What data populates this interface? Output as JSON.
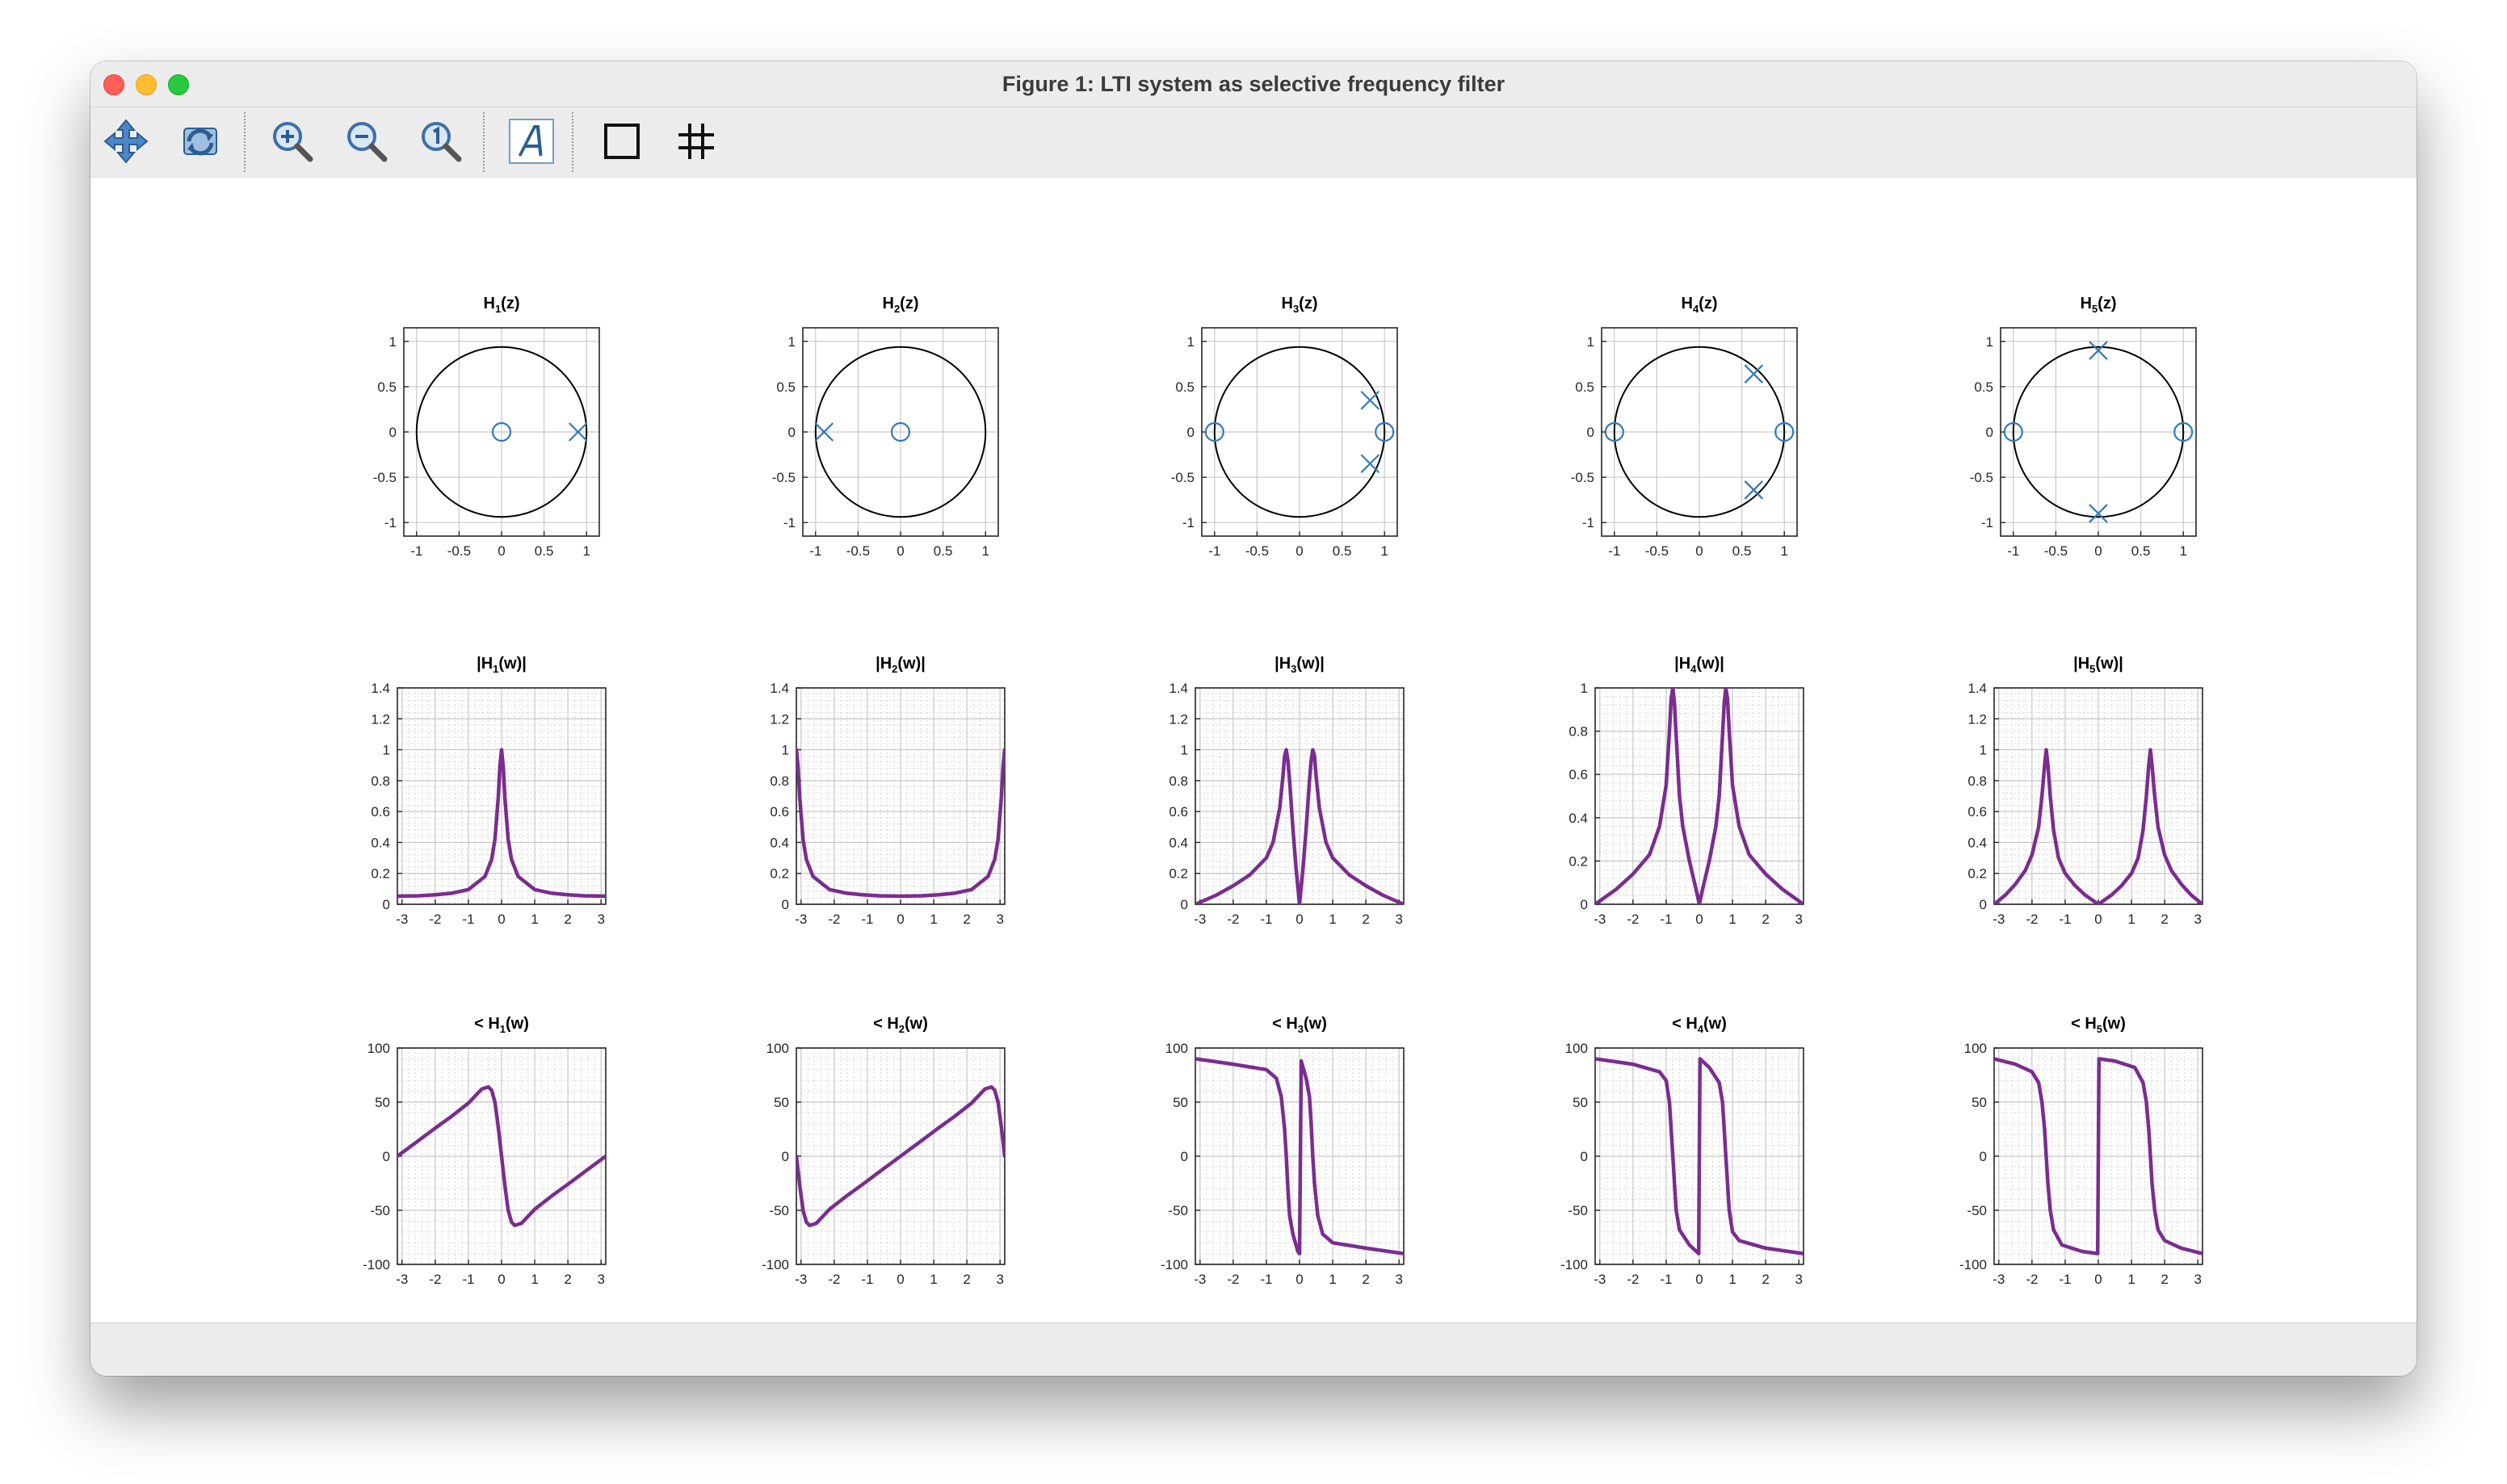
{
  "window": {
    "title": "Figure 1: LTI system as selective frequency filter"
  },
  "colors": {
    "marker": "#2f7ab8",
    "curve": "#7a2d8f",
    "circle": "#000000"
  },
  "toolbar": {
    "buttons": [
      {
        "name": "pan-button",
        "icon": "pan-icon"
      },
      {
        "name": "rotate-button",
        "icon": "rotate-icon"
      },
      {
        "name": "zoom-in-button",
        "icon": "zoom-in-icon"
      },
      {
        "name": "zoom-out-button",
        "icon": "zoom-out-icon"
      },
      {
        "name": "zoom-reset-button",
        "icon": "zoom-reset-icon"
      },
      {
        "name": "insert-text-button",
        "icon": "text-icon"
      },
      {
        "name": "axes-box-button",
        "icon": "box-icon"
      },
      {
        "name": "grid-button",
        "icon": "grid-icon"
      }
    ]
  },
  "chart_data": [
    {
      "id": "pz1",
      "type": "scatter",
      "title": "H1(z)",
      "xlim": [
        -1.15,
        1.15
      ],
      "ylim": [
        -1.15,
        1.15
      ],
      "xticks": [
        -1,
        -0.5,
        0,
        0.5,
        1
      ],
      "yticks": [
        -1,
        -0.5,
        0,
        0.5,
        1
      ],
      "grid": true,
      "unit_circle": true,
      "zeros": [
        [
          0,
          0
        ]
      ],
      "poles": [
        [
          0.9,
          0
        ]
      ]
    },
    {
      "id": "pz2",
      "type": "scatter",
      "title": "H2(z)",
      "xlim": [
        -1.15,
        1.15
      ],
      "ylim": [
        -1.15,
        1.15
      ],
      "xticks": [
        -1,
        -0.5,
        0,
        0.5,
        1
      ],
      "yticks": [
        -1,
        -0.5,
        0,
        0.5,
        1
      ],
      "grid": true,
      "unit_circle": true,
      "zeros": [
        [
          0,
          0
        ]
      ],
      "poles": [
        [
          -0.9,
          0
        ]
      ]
    },
    {
      "id": "pz3",
      "type": "scatter",
      "title": "H3(z)",
      "xlim": [
        -1.15,
        1.15
      ],
      "ylim": [
        -1.15,
        1.15
      ],
      "xticks": [
        -1,
        -0.5,
        0,
        0.5,
        1
      ],
      "yticks": [
        -1,
        -0.5,
        0,
        0.5,
        1
      ],
      "grid": true,
      "unit_circle": true,
      "zeros": [
        [
          -1,
          0
        ],
        [
          1,
          0
        ]
      ],
      "poles": [
        [
          0.83,
          0.35
        ],
        [
          0.83,
          -0.35
        ]
      ]
    },
    {
      "id": "pz4",
      "type": "scatter",
      "title": "H4(z)",
      "xlim": [
        -1.15,
        1.15
      ],
      "ylim": [
        -1.15,
        1.15
      ],
      "xticks": [
        -1,
        -0.5,
        0,
        0.5,
        1
      ],
      "yticks": [
        -1,
        -0.5,
        0,
        0.5,
        1
      ],
      "grid": true,
      "unit_circle": true,
      "zeros": [
        [
          -1,
          0
        ],
        [
          1,
          0
        ]
      ],
      "poles": [
        [
          0.64,
          0.64
        ],
        [
          0.64,
          -0.64
        ]
      ]
    },
    {
      "id": "pz5",
      "type": "scatter",
      "title": "H5(z)",
      "xlim": [
        -1.15,
        1.15
      ],
      "ylim": [
        -1.15,
        1.15
      ],
      "xticks": [
        -1,
        -0.5,
        0,
        0.5,
        1
      ],
      "yticks": [
        -1,
        -0.5,
        0,
        0.5,
        1
      ],
      "grid": true,
      "unit_circle": true,
      "zeros": [
        [
          -1,
          0
        ],
        [
          1,
          0
        ]
      ],
      "poles": [
        [
          0,
          0.9
        ],
        [
          0,
          -0.9
        ]
      ]
    },
    {
      "id": "mag1",
      "type": "line",
      "title": "|H1(w)|",
      "xlim": [
        -3.14159,
        3.14159
      ],
      "ylim": [
        0,
        1.4
      ],
      "xticks": [
        -3,
        -2,
        -1,
        0,
        1,
        2,
        3
      ],
      "yticks": [
        0,
        0.2,
        0.4,
        0.6,
        0.8,
        1,
        1.2,
        1.4
      ],
      "grid": "minor",
      "x": [
        -3.14,
        -2.5,
        -2,
        -1.5,
        -1,
        -0.5,
        -0.3,
        -0.2,
        -0.1,
        -0.05,
        0,
        0.05,
        0.1,
        0.2,
        0.3,
        0.5,
        1,
        1.5,
        2,
        2.5,
        3.14
      ],
      "y": [
        0.053,
        0.055,
        0.061,
        0.072,
        0.095,
        0.18,
        0.29,
        0.42,
        0.69,
        0.89,
        1,
        0.89,
        0.69,
        0.42,
        0.29,
        0.18,
        0.095,
        0.072,
        0.061,
        0.055,
        0.053
      ]
    },
    {
      "id": "mag2",
      "type": "line",
      "title": "|H2(w)|",
      "xlim": [
        -3.14159,
        3.14159
      ],
      "ylim": [
        0,
        1.4
      ],
      "xticks": [
        -3,
        -2,
        -1,
        0,
        1,
        2,
        3
      ],
      "yticks": [
        0,
        0.2,
        0.4,
        0.6,
        0.8,
        1,
        1.2,
        1.4
      ],
      "grid": "minor",
      "x": [
        -3.14,
        -3.09,
        -3.04,
        -2.94,
        -2.84,
        -2.64,
        -2.14,
        -1.64,
        -1.14,
        -0.64,
        0,
        0.64,
        1.14,
        1.64,
        2.14,
        2.64,
        2.84,
        2.94,
        3.04,
        3.09,
        3.14
      ],
      "y": [
        1,
        0.89,
        0.69,
        0.42,
        0.29,
        0.18,
        0.095,
        0.072,
        0.061,
        0.055,
        0.053,
        0.055,
        0.061,
        0.072,
        0.095,
        0.18,
        0.29,
        0.42,
        0.69,
        0.89,
        1
      ]
    },
    {
      "id": "mag3",
      "type": "line",
      "title": "|H3(w)|",
      "xlim": [
        -3.14159,
        3.14159
      ],
      "ylim": [
        0,
        1.4
      ],
      "xticks": [
        -3,
        -2,
        -1,
        0,
        1,
        2,
        3
      ],
      "yticks": [
        0,
        0.2,
        0.4,
        0.6,
        0.8,
        1,
        1.2,
        1.4
      ],
      "grid": "minor",
      "x": [
        -3.14,
        -2.5,
        -2,
        -1.5,
        -1,
        -0.8,
        -0.6,
        -0.5,
        -0.45,
        -0.4,
        -0.35,
        -0.3,
        -0.2,
        -0.1,
        0,
        0.1,
        0.2,
        0.3,
        0.35,
        0.4,
        0.45,
        0.5,
        0.6,
        0.8,
        1,
        1.5,
        2,
        2.5,
        3.14
      ],
      "y": [
        0,
        0.06,
        0.12,
        0.19,
        0.3,
        0.4,
        0.62,
        0.83,
        0.96,
        1,
        0.93,
        0.8,
        0.49,
        0.22,
        0,
        0.22,
        0.49,
        0.8,
        0.93,
        1,
        0.96,
        0.83,
        0.62,
        0.4,
        0.3,
        0.19,
        0.12,
        0.06,
        0
      ]
    },
    {
      "id": "mag4",
      "type": "line",
      "title": "|H4(w)|",
      "xlim": [
        -3.14159,
        3.14159
      ],
      "ylim": [
        0,
        1
      ],
      "xticks": [
        -3,
        -2,
        -1,
        0,
        1,
        2,
        3
      ],
      "yticks": [
        0,
        0.2,
        0.4,
        0.6,
        0.8,
        1
      ],
      "grid": "minor",
      "x": [
        -3.14,
        -2.5,
        -2,
        -1.5,
        -1.2,
        -1,
        -0.9,
        -0.85,
        -0.8,
        -0.75,
        -0.7,
        -0.6,
        -0.5,
        -0.3,
        -0.1,
        0,
        0.1,
        0.3,
        0.5,
        0.6,
        0.7,
        0.75,
        0.8,
        0.85,
        0.9,
        1,
        1.2,
        1.5,
        2,
        2.5,
        3.14
      ],
      "y": [
        0,
        0.07,
        0.14,
        0.23,
        0.36,
        0.55,
        0.8,
        0.95,
        1,
        0.93,
        0.78,
        0.5,
        0.36,
        0.2,
        0.07,
        0,
        0.07,
        0.2,
        0.36,
        0.5,
        0.78,
        0.93,
        1,
        0.95,
        0.8,
        0.55,
        0.36,
        0.23,
        0.14,
        0.07,
        0
      ]
    },
    {
      "id": "mag5",
      "type": "line",
      "title": "|H5(w)|",
      "xlim": [
        -3.14159,
        3.14159
      ],
      "ylim": [
        0,
        1.4
      ],
      "xticks": [
        -3,
        -2,
        -1,
        0,
        1,
        2,
        3
      ],
      "yticks": [
        0,
        0.2,
        0.4,
        0.6,
        0.8,
        1,
        1.2,
        1.4
      ],
      "grid": "minor",
      "x": [
        -3.14,
        -2.8,
        -2.5,
        -2.2,
        -2,
        -1.8,
        -1.7,
        -1.62,
        -1.57,
        -1.52,
        -1.45,
        -1.35,
        -1.2,
        -1,
        -0.7,
        -0.4,
        0,
        0.4,
        0.7,
        1,
        1.2,
        1.35,
        1.45,
        1.52,
        1.57,
        1.62,
        1.7,
        1.8,
        2,
        2.2,
        2.5,
        2.8,
        3.14
      ],
      "y": [
        0,
        0.06,
        0.13,
        0.22,
        0.32,
        0.5,
        0.7,
        0.9,
        1,
        0.9,
        0.7,
        0.48,
        0.3,
        0.2,
        0.12,
        0.06,
        0,
        0.06,
        0.12,
        0.2,
        0.3,
        0.48,
        0.7,
        0.9,
        1,
        0.9,
        0.7,
        0.5,
        0.32,
        0.22,
        0.13,
        0.06,
        0
      ]
    },
    {
      "id": "ph1",
      "type": "line",
      "title": "< H1(w)",
      "xlim": [
        -3.14159,
        3.14159
      ],
      "ylim": [
        -100,
        100
      ],
      "xticks": [
        -3,
        -2,
        -1,
        0,
        1,
        2,
        3
      ],
      "yticks": [
        -100,
        -50,
        0,
        50,
        100
      ],
      "grid": "minor",
      "x": [
        -3.14,
        -2.5,
        -2,
        -1.5,
        -1,
        -0.6,
        -0.4,
        -0.3,
        -0.2,
        -0.1,
        0,
        0.1,
        0.2,
        0.3,
        0.4,
        0.6,
        1,
        1.5,
        2,
        2.5,
        3.14
      ],
      "y": [
        0,
        14.5,
        26,
        37,
        49,
        62,
        64,
        61,
        50,
        27,
        0,
        -27,
        -50,
        -61,
        -64,
        -62,
        -49,
        -37,
        -26,
        -14.5,
        0
      ]
    },
    {
      "id": "ph2",
      "type": "line",
      "title": "< H2(w)",
      "xlim": [
        -3.14159,
        3.14159
      ],
      "ylim": [
        -100,
        100
      ],
      "xticks": [
        -3,
        -2,
        -1,
        0,
        1,
        2,
        3
      ],
      "yticks": [
        -100,
        -50,
        0,
        50,
        100
      ],
      "grid": "minor",
      "x": [
        -3.14,
        -3.04,
        -2.94,
        -2.84,
        -2.74,
        -2.54,
        -2.14,
        -1.64,
        -1.14,
        -0.64,
        0,
        0.64,
        1.14,
        1.64,
        2.14,
        2.54,
        2.74,
        2.84,
        2.94,
        3.04,
        3.14
      ],
      "y": [
        0,
        -27,
        -50,
        -61,
        -64,
        -62,
        -49,
        -37,
        -26,
        -14.5,
        0,
        14.5,
        26,
        37,
        49,
        62,
        64,
        61,
        50,
        27,
        0
      ]
    },
    {
      "id": "ph3",
      "type": "line",
      "title": "< H3(w)",
      "xlim": [
        -3.14159,
        3.14159
      ],
      "ylim": [
        -100,
        100
      ],
      "xticks": [
        -3,
        -2,
        -1,
        0,
        1,
        2,
        3
      ],
      "yticks": [
        -100,
        -50,
        0,
        50,
        100
      ],
      "grid": "minor",
      "x": [
        -3.14,
        -2,
        -1,
        -0.7,
        -0.55,
        -0.45,
        -0.4,
        -0.35,
        -0.3,
        -0.2,
        -0.05,
        0,
        0.05,
        0.2,
        0.3,
        0.35,
        0.4,
        0.45,
        0.55,
        0.7,
        1,
        2,
        3.14
      ],
      "y": [
        90,
        85,
        80,
        72,
        55,
        25,
        0,
        -30,
        -55,
        -72,
        -88,
        -90,
        88,
        72,
        55,
        30,
        0,
        -25,
        -55,
        -72,
        -80,
        -85,
        -90
      ]
    },
    {
      "id": "ph4",
      "type": "line",
      "title": "< H4(w)",
      "xlim": [
        -3.14159,
        3.14159
      ],
      "ylim": [
        -100,
        100
      ],
      "xticks": [
        -3,
        -2,
        -1,
        0,
        1,
        2,
        3
      ],
      "yticks": [
        -100,
        -50,
        0,
        50,
        100
      ],
      "grid": "minor",
      "x": [
        -3.14,
        -2,
        -1.2,
        -1,
        -0.9,
        -0.85,
        -0.8,
        -0.75,
        -0.7,
        -0.6,
        -0.3,
        -0.02,
        0.02,
        0.3,
        0.6,
        0.7,
        0.75,
        0.8,
        0.85,
        0.9,
        1,
        1.2,
        2,
        3.14
      ],
      "y": [
        90,
        85,
        78,
        70,
        50,
        25,
        0,
        -25,
        -50,
        -68,
        -82,
        -90,
        90,
        82,
        68,
        50,
        25,
        0,
        -25,
        -50,
        -70,
        -78,
        -85,
        -90
      ]
    },
    {
      "id": "ph5",
      "type": "line",
      "title": "< H5(w)",
      "xlim": [
        -3.14159,
        3.14159
      ],
      "ylim": [
        -100,
        100
      ],
      "xticks": [
        -3,
        -2,
        -1,
        0,
        1,
        2,
        3
      ],
      "yticks": [
        -100,
        -50,
        0,
        50,
        100
      ],
      "grid": "minor",
      "x": [
        -3.14,
        -2.5,
        -2,
        -1.8,
        -1.7,
        -1.62,
        -1.57,
        -1.52,
        -1.45,
        -1.35,
        -1.1,
        -0.5,
        -0.02,
        0.02,
        0.5,
        1.1,
        1.35,
        1.45,
        1.52,
        1.57,
        1.62,
        1.7,
        1.8,
        2,
        2.5,
        3.14
      ],
      "y": [
        90,
        85,
        78,
        68,
        50,
        25,
        0,
        -25,
        -50,
        -68,
        -82,
        -88,
        -90,
        90,
        88,
        82,
        68,
        50,
        25,
        0,
        -25,
        -50,
        -68,
        -78,
        -85,
        -90
      ]
    }
  ]
}
